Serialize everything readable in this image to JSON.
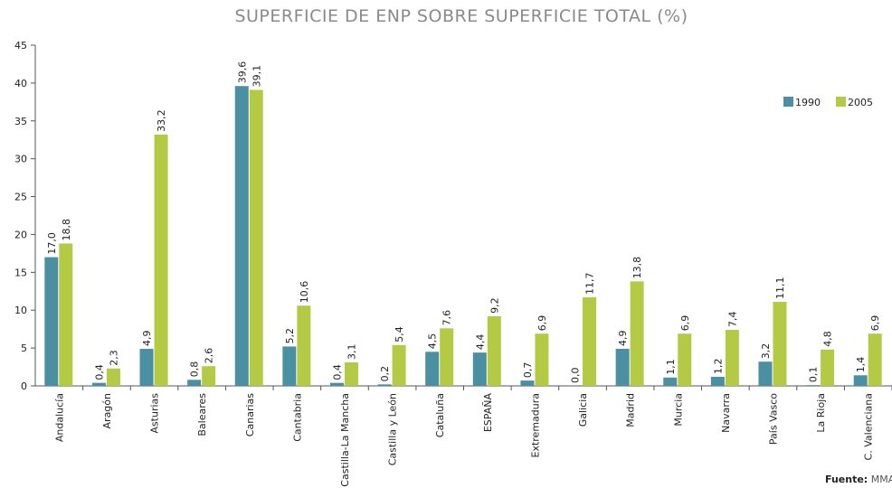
{
  "chart_data": {
    "type": "bar",
    "title": "SUPERFICIE DE ENP SOBRE SUPERFICIE TOTAL (%)",
    "categories": [
      "Andalucía",
      "Aragón",
      "Asturias",
      "Baleares",
      "Canarias",
      "Cantabria",
      "Castilla-La Mancha",
      "Castilla y León",
      "Cataluña",
      "ESPAÑA",
      "Extremadura",
      "Galicia",
      "Madrid",
      "Murcia",
      "Navarra",
      "País Vasco",
      "La Rioja",
      "C. Valenciana"
    ],
    "series": [
      {
        "name": "1990",
        "color": "#4a90a2",
        "values": [
          17.0,
          0.4,
          4.9,
          0.8,
          39.6,
          5.2,
          0.4,
          0.2,
          4.5,
          4.4,
          0.7,
          0.0,
          4.9,
          1.1,
          1.2,
          3.2,
          0.1,
          1.4
        ],
        "value_labels": [
          "17,0",
          "0,4",
          "4,9",
          "0,8",
          "39,6",
          "5,2",
          "0,4",
          "0,2",
          "4,5",
          "4,4",
          "0,7",
          "0,0",
          "4,9",
          "1,1",
          "1,2",
          "3,2",
          "0,1",
          "1,4"
        ]
      },
      {
        "name": "2005",
        "color": "#b4c944",
        "values": [
          18.8,
          2.3,
          33.2,
          2.6,
          39.1,
          10.6,
          3.1,
          5.4,
          7.6,
          9.2,
          6.9,
          11.7,
          13.8,
          6.9,
          7.4,
          11.1,
          4.8,
          6.9
        ],
        "value_labels": [
          "18,8",
          "2,3",
          "33,2",
          "2,6",
          "39,1",
          "10,6",
          "3,1",
          "5,4",
          "7,6",
          "9,2",
          "6,9",
          "11,7",
          "13,8",
          "6,9",
          "7,4",
          "11,1",
          "4,8",
          "6,9"
        ]
      }
    ],
    "ylim": [
      0,
      45
    ],
    "yticks": [
      0,
      5,
      10,
      15,
      20,
      25,
      30,
      35,
      40,
      45
    ],
    "legend": "upper right",
    "source": {
      "label": "Fuente:",
      "text": "MMA"
    }
  }
}
